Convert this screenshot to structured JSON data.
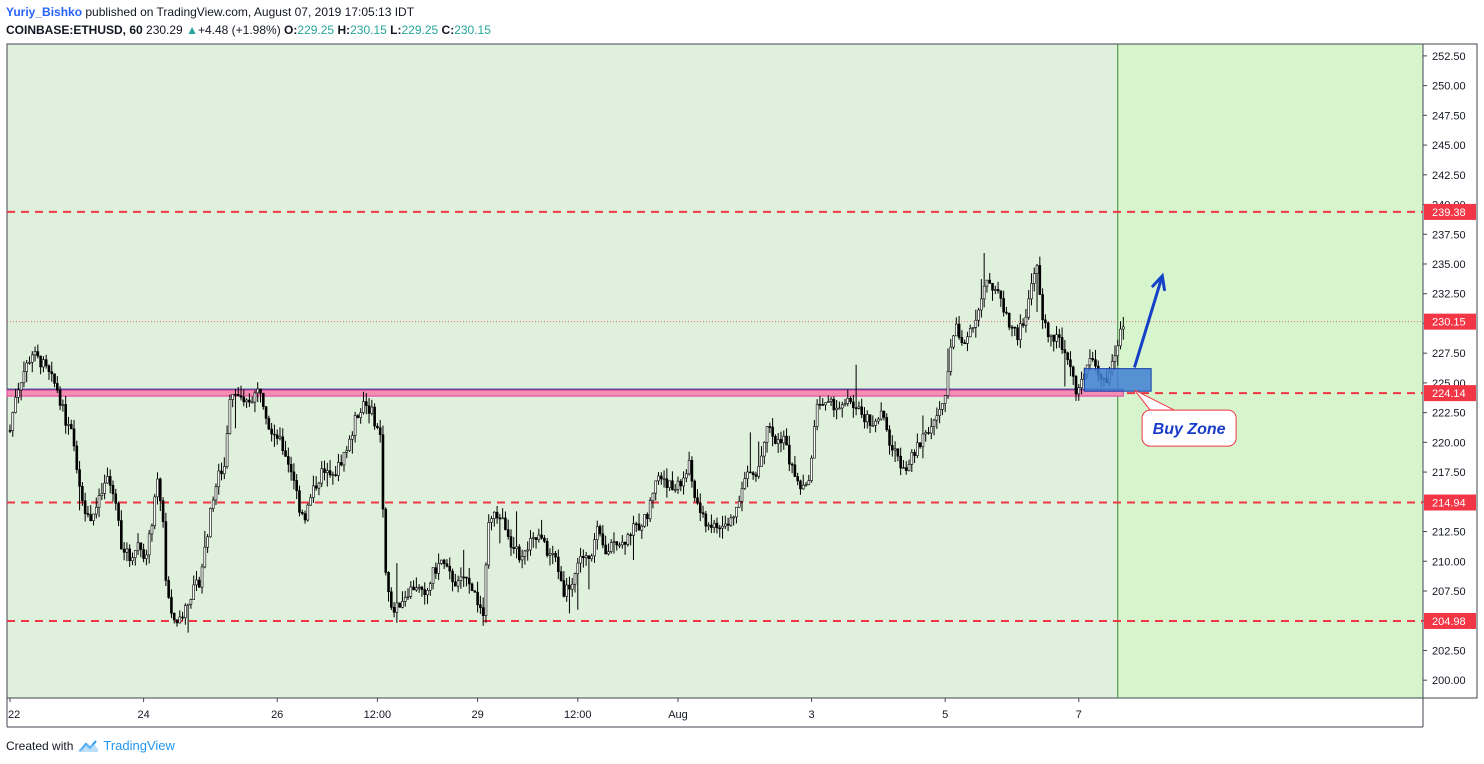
{
  "header": {
    "username": "Yuriy_Bishko",
    "published_text": "published on TradingView.com, August 07, 2019 17:05:13 IDT",
    "symbol": "COINBASE:ETHUSD, 60",
    "last": "230.29",
    "change_arrow": "▲",
    "change": "+4.48 (+1.98%)",
    "o_label": "O:",
    "o_value": "229.25",
    "h_label": "H:",
    "h_value": "230.15",
    "l_label": "L:",
    "l_value": "229.25",
    "c_label": "C:",
    "c_value": "230.15"
  },
  "footer": {
    "created_with": "Created with",
    "brand": "TradingView",
    "logo_icon": "tradingview-cloud-icon"
  },
  "colors": {
    "plot_bg": "#dff0dc",
    "future_bg": "#d6f5cc",
    "level_line": "#f23645",
    "zone_fill": "#3f7fd4",
    "arrow": "#1541c9",
    "magenta": "#e040a0",
    "price_label_bg": "#f23645",
    "candle": "#000000"
  },
  "chart_data": {
    "type": "candlestick",
    "symbol": "COINBASE:ETHUSD",
    "interval": "60",
    "ylim": [
      198.5,
      253.5
    ],
    "y_ticks": [
      200,
      202.5,
      205,
      207.5,
      210,
      212.5,
      215,
      217.5,
      220,
      222.5,
      225,
      227.5,
      230,
      232.5,
      235,
      237.5,
      240,
      242.5,
      245,
      247.5,
      250,
      252.5
    ],
    "y_tick_labels": [
      "200.00",
      "202.50",
      "205.00",
      "207.50",
      "210.00",
      "212.50",
      "215.00",
      "217.50",
      "220.00",
      "222.50",
      "225.00",
      "227.50",
      "230.00",
      "232.50",
      "235.00",
      "237.50",
      "240.00",
      "242.50",
      "245.00",
      "247.50",
      "250.00",
      "252.50"
    ],
    "x_tick_labels": [
      "22",
      "24",
      "26",
      "12:00",
      "29",
      "12:00",
      "Aug",
      "3",
      "5",
      "7"
    ],
    "x_tick_hours": [
      0,
      48,
      96,
      132,
      168,
      204,
      240,
      288,
      336,
      384
    ],
    "horizontal_levels": [
      {
        "price": 239.38,
        "label": "239.38",
        "style": "dashed"
      },
      {
        "price": 224.14,
        "label": "224.14",
        "style": "dashed"
      },
      {
        "price": 214.94,
        "label": "214.94",
        "style": "dashed"
      },
      {
        "price": 204.98,
        "label": "204.98",
        "style": "dashed"
      }
    ],
    "last_price": {
      "price": 230.15,
      "label": "230.15"
    },
    "annotations": {
      "buy_zone_label": "Buy Zone",
      "buy_zone": {
        "x0_hours": 386,
        "x1_hours": 410,
        "price_low": 224.3,
        "price_high": 226.2
      },
      "arrow": {
        "from_hours": 404,
        "from_price": 226.3,
        "to_hours": 414,
        "to_price": 234.0
      },
      "callout": {
        "anchor_hours": 404,
        "anchor_price": 224.4,
        "box_hours": 424,
        "box_price": 221.2
      }
    },
    "time_marker_hours": 398,
    "price_path": [
      [
        -1,
        219.5
      ],
      [
        2,
        224.0
      ],
      [
        5,
        226.0
      ],
      [
        8,
        227.5
      ],
      [
        12,
        226.5
      ],
      [
        15,
        225.3
      ],
      [
        17,
        224.5
      ],
      [
        20,
        221.8
      ],
      [
        22,
        220.8
      ],
      [
        25,
        216.5
      ],
      [
        28,
        213.5
      ],
      [
        31,
        214.5
      ],
      [
        35,
        217.0
      ],
      [
        38,
        215.0
      ],
      [
        40,
        211.5
      ],
      [
        43,
        210.2
      ],
      [
        46,
        211.5
      ],
      [
        49,
        210.3
      ],
      [
        53,
        216.5
      ],
      [
        55,
        213.5
      ],
      [
        56,
        208.5
      ],
      [
        58,
        205.2
      ],
      [
        61,
        205.0
      ],
      [
        64,
        206.8
      ],
      [
        68,
        208.3
      ],
      [
        70,
        211.0
      ],
      [
        73,
        215.5
      ],
      [
        75,
        217.2
      ],
      [
        77,
        218.0
      ],
      [
        79,
        224.0
      ],
      [
        81,
        224.5
      ],
      [
        84,
        223.0
      ],
      [
        87,
        223.8
      ],
      [
        90,
        224.5
      ],
      [
        93,
        221.5
      ],
      [
        96,
        220.5
      ],
      [
        99,
        219.0
      ],
      [
        102,
        217.0
      ],
      [
        104,
        214.5
      ],
      [
        106,
        213.8
      ],
      [
        109,
        216.0
      ],
      [
        112,
        217.5
      ],
      [
        116,
        217.0
      ],
      [
        119,
        218.5
      ],
      [
        122,
        220.0
      ],
      [
        124,
        221.8
      ],
      [
        127,
        223.5
      ],
      [
        130,
        222.5
      ],
      [
        133,
        220.5
      ],
      [
        135,
        209.0
      ],
      [
        137,
        205.8
      ],
      [
        140,
        206.5
      ],
      [
        143,
        207.5
      ],
      [
        146,
        208.0
      ],
      [
        149,
        206.8
      ],
      [
        152,
        209.0
      ],
      [
        155,
        210.0
      ],
      [
        158,
        208.8
      ],
      [
        161,
        208.0
      ],
      [
        164,
        209.0
      ],
      [
        167,
        207.2
      ],
      [
        170,
        205.5
      ],
      [
        172,
        213.0
      ],
      [
        175,
        214.0
      ],
      [
        178,
        213.0
      ],
      [
        181,
        211.0
      ],
      [
        184,
        210.2
      ],
      [
        187,
        211.5
      ],
      [
        190,
        212.0
      ],
      [
        193,
        210.8
      ],
      [
        196,
        210.2
      ],
      [
        199,
        207.5
      ],
      [
        202,
        208.2
      ],
      [
        205,
        210.5
      ],
      [
        208,
        210.0
      ],
      [
        211,
        212.5
      ],
      [
        214,
        210.5
      ],
      [
        217,
        212.0
      ],
      [
        220,
        211.5
      ],
      [
        223,
        212.5
      ],
      [
        226,
        213.0
      ],
      [
        229,
        213.8
      ],
      [
        232,
        217.0
      ],
      [
        235,
        217.0
      ],
      [
        238,
        216.0
      ],
      [
        241,
        216.5
      ],
      [
        244,
        218.0
      ],
      [
        246,
        215.5
      ],
      [
        249,
        213.5
      ],
      [
        252,
        213.0
      ],
      [
        255,
        212.8
      ],
      [
        258,
        213.0
      ],
      [
        261,
        214.5
      ],
      [
        263,
        216.5
      ],
      [
        266,
        217.5
      ],
      [
        268,
        217.0
      ],
      [
        270,
        219.0
      ],
      [
        272,
        221.5
      ],
      [
        275,
        220.0
      ],
      [
        278,
        220.5
      ],
      [
        280,
        218.5
      ],
      [
        283,
        216.5
      ],
      [
        286,
        216.0
      ],
      [
        288,
        218.5
      ],
      [
        290,
        223.5
      ],
      [
        293,
        223.0
      ],
      [
        296,
        223.2
      ],
      [
        299,
        222.8
      ],
      [
        302,
        223.5
      ],
      [
        305,
        222.5
      ],
      [
        308,
        222.0
      ],
      [
        311,
        221.5
      ],
      [
        313,
        222.5
      ],
      [
        316,
        220.0
      ],
      [
        319,
        218.5
      ],
      [
        322,
        218.0
      ],
      [
        325,
        219.0
      ],
      [
        328,
        220.5
      ],
      [
        331,
        221.5
      ],
      [
        334,
        222.5
      ],
      [
        336,
        223.5
      ],
      [
        338,
        228.5
      ],
      [
        340,
        229.5
      ],
      [
        343,
        228.5
      ],
      [
        346,
        229.5
      ],
      [
        349,
        232.5
      ],
      [
        351,
        234.0
      ],
      [
        353,
        233.0
      ],
      [
        356,
        232.0
      ],
      [
        359,
        230.0
      ],
      [
        362,
        229.0
      ],
      [
        365,
        230.5
      ],
      [
        367,
        233.5
      ],
      [
        369,
        235.0
      ],
      [
        371,
        230.0
      ],
      [
        374,
        229.0
      ],
      [
        377,
        228.5
      ],
      [
        379,
        228.0
      ],
      [
        381,
        226.5
      ],
      [
        383,
        224.5
      ],
      [
        385,
        225.0
      ],
      [
        387,
        227.0
      ],
      [
        390,
        226.5
      ],
      [
        392,
        225.0
      ],
      [
        394,
        225.5
      ],
      [
        396,
        226.5
      ],
      [
        398,
        228.0
      ],
      [
        400,
        230.15
      ]
    ]
  }
}
